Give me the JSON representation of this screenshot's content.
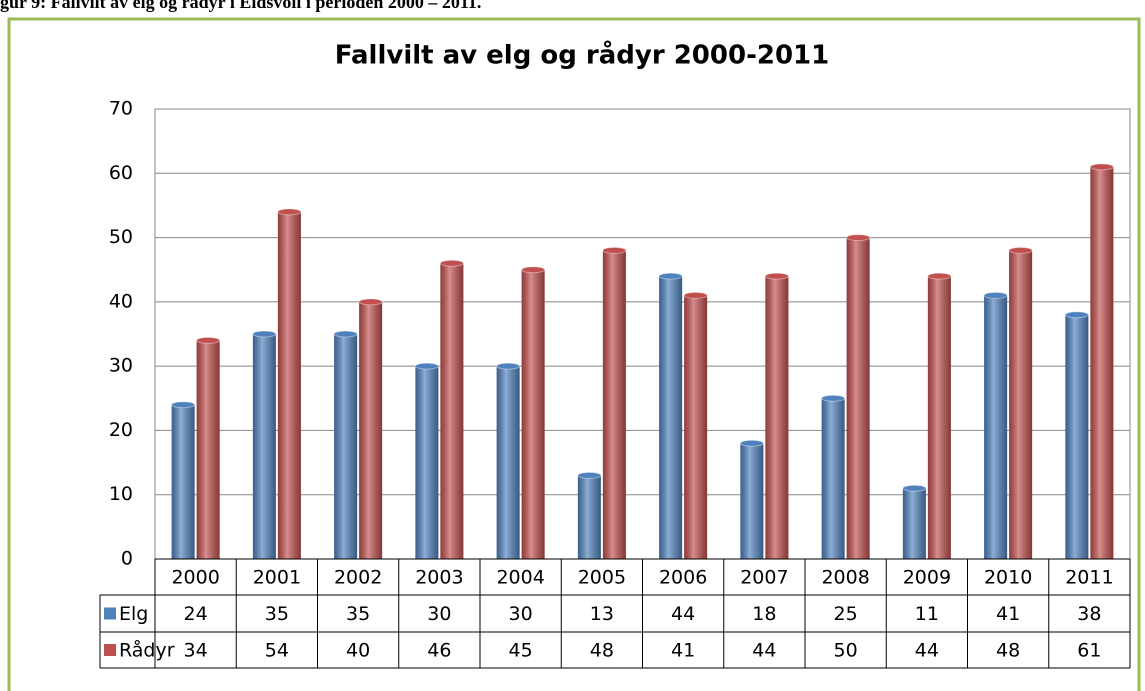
{
  "caption": "gur 9: Fallvilt av elg og rådyr i Eidsvoll i perioden 2000 – 2011.",
  "chart_data": {
    "type": "bar",
    "title": "Fallvilt av elg og rådyr 2000-2011",
    "categories": [
      "2000",
      "2001",
      "2002",
      "2003",
      "2004",
      "2005",
      "2006",
      "2007",
      "2008",
      "2009",
      "2010",
      "2011"
    ],
    "series": [
      {
        "name": "Elg",
        "color": "#4f81bd",
        "values": [
          24,
          35,
          35,
          30,
          30,
          13,
          44,
          18,
          25,
          11,
          41,
          38
        ]
      },
      {
        "name": "Rådyr",
        "color": "#c0504d",
        "values": [
          34,
          54,
          40,
          46,
          45,
          48,
          41,
          44,
          50,
          44,
          48,
          61
        ]
      }
    ],
    "ylim": [
      0,
      70
    ],
    "yticks": [
      0,
      10,
      20,
      30,
      40,
      50,
      60,
      70
    ],
    "grid": true
  }
}
